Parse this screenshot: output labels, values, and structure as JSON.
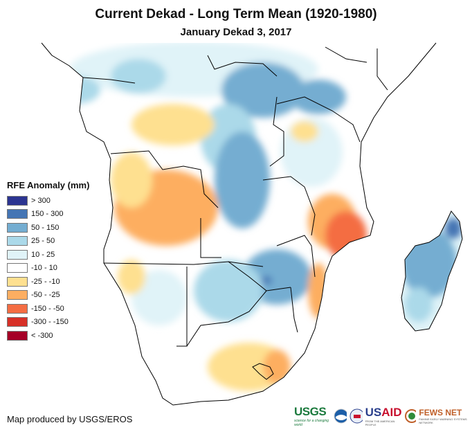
{
  "title": "Current Dekad - Long Term Mean (1920-1980)",
  "subtitle": "January Dekad 3, 2017",
  "legend": {
    "title": "RFE Anomaly (mm)",
    "items": [
      {
        "label": "> 300",
        "color": "#2c3591"
      },
      {
        "label": "150 - 300",
        "color": "#4575b4"
      },
      {
        "label": "50 - 150",
        "color": "#74add1"
      },
      {
        "label": "25 - 50",
        "color": "#abd9e9"
      },
      {
        "label": "10 - 25",
        "color": "#e0f3f8"
      },
      {
        "label": "-10 - 10",
        "color": "#ffffff"
      },
      {
        "label": "-25 - -10",
        "color": "#fee090"
      },
      {
        "label": "-50 - -25",
        "color": "#fdae61"
      },
      {
        "label": "-150 - -50",
        "color": "#f46d43"
      },
      {
        "label": "-300 - -150",
        "color": "#d73027"
      },
      {
        "label": "< -300",
        "color": "#a50026"
      }
    ]
  },
  "credit": "Map produced by USGS/EROS",
  "logos": {
    "usgs": {
      "name": "USGS",
      "tagline": "science for a changing world"
    },
    "noaa": {
      "name": "NOAA"
    },
    "usaid": {
      "name_a": "US",
      "name_b": "AID",
      "tagline": "FROM THE AMERICAN PEOPLE"
    },
    "fews": {
      "name": "FEWS NET",
      "tagline": "FAMINE EARLY WARNING SYSTEMS NETWORK"
    }
  },
  "map_regions": {
    "region": "Southern and Central Africa",
    "notable": [
      {
        "area": "Angola",
        "anomaly": "-50 - -25"
      },
      {
        "area": "Mozambique (central/north)",
        "anomaly": "-150 - -50"
      },
      {
        "area": "Madagascar",
        "anomaly": "50 - 150"
      },
      {
        "area": "Zimbabwe / Botswana",
        "anomaly": "50 - 150"
      },
      {
        "area": "DR Congo (central)",
        "anomaly": "50 - 150"
      },
      {
        "area": "South Africa (east)",
        "anomaly": "-50 - -25"
      }
    ]
  }
}
